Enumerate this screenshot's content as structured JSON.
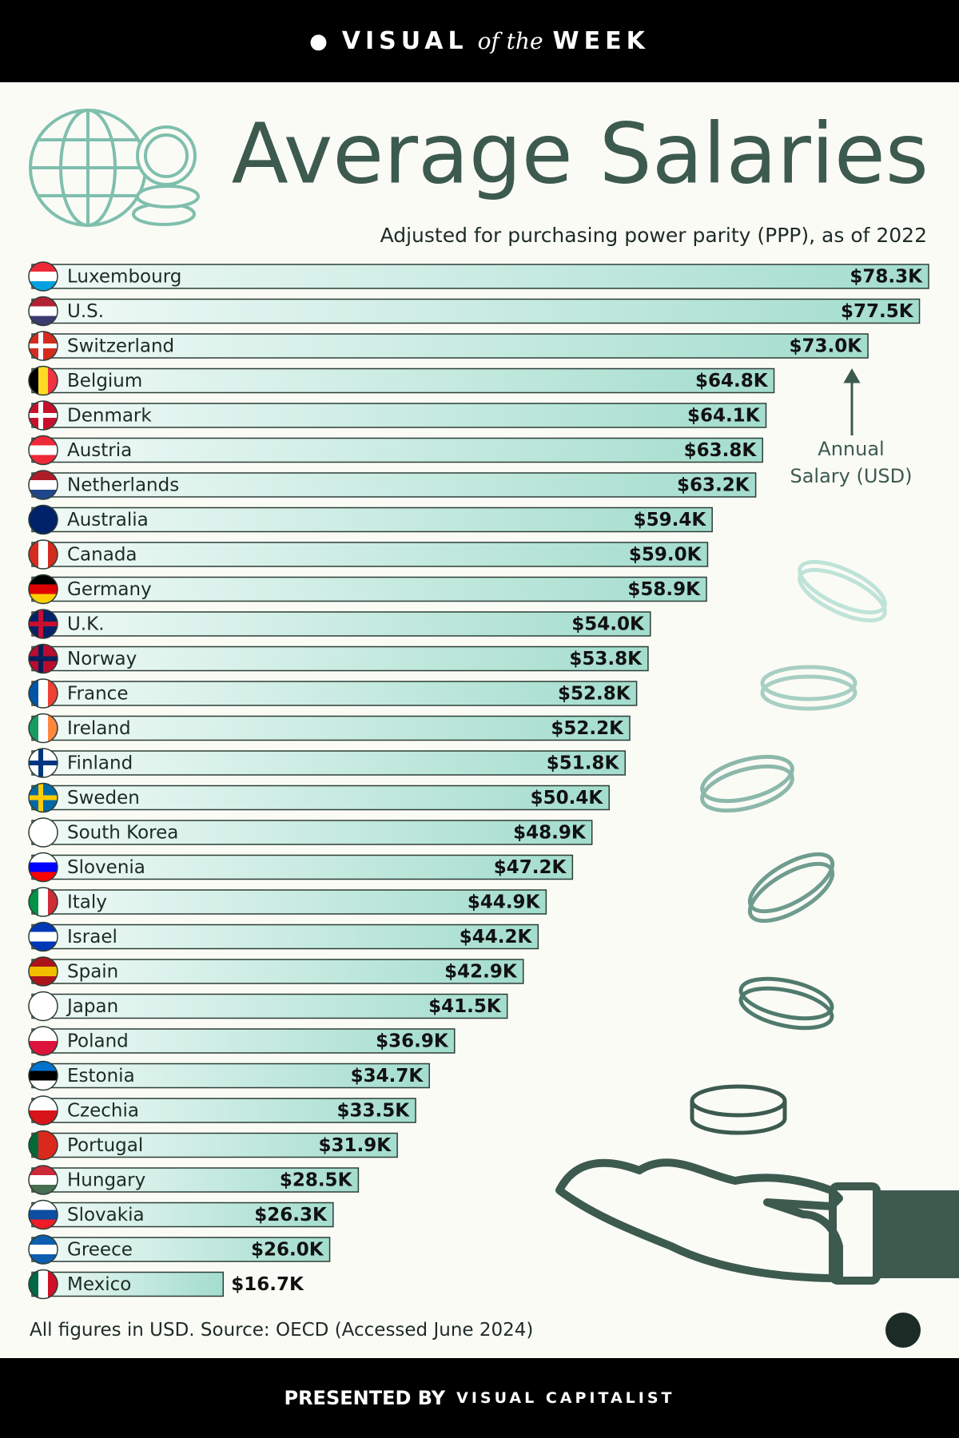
{
  "header": {
    "brand": "VISUAL",
    "connector": "of the",
    "series": "WEEK"
  },
  "chart_data": {
    "type": "bar",
    "orientation": "horizontal",
    "title": "Average Salaries",
    "subtitle": "Adjusted for purchasing power parity (PPP), as of 2022",
    "annotation": "Annual Salary (USD)",
    "categories": [
      "Luxembourg",
      "U.S.",
      "Switzerland",
      "Belgium",
      "Denmark",
      "Austria",
      "Netherlands",
      "Australia",
      "Canada",
      "Germany",
      "U.K.",
      "Norway",
      "France",
      "Ireland",
      "Finland",
      "Sweden",
      "South Korea",
      "Slovenia",
      "Italy",
      "Israel",
      "Spain",
      "Japan",
      "Poland",
      "Estonia",
      "Czechia",
      "Portugal",
      "Hungary",
      "Slovakia",
      "Greece",
      "Mexico"
    ],
    "values": [
      78.3,
      77.5,
      73.0,
      64.8,
      64.1,
      63.8,
      63.2,
      59.4,
      59.0,
      58.9,
      54.0,
      53.8,
      52.8,
      52.2,
      51.8,
      50.4,
      48.9,
      47.2,
      44.9,
      44.2,
      42.9,
      41.5,
      36.9,
      34.7,
      33.5,
      31.9,
      28.5,
      26.3,
      26.0,
      16.7
    ],
    "value_labels": [
      "$78.3K",
      "$77.5K",
      "$73.0K",
      "$64.8K",
      "$64.1K",
      "$63.8K",
      "$63.2K",
      "$59.4K",
      "$59.0K",
      "$58.9K",
      "$54.0K",
      "$53.8K",
      "$52.8K",
      "$52.2K",
      "$51.8K",
      "$50.4K",
      "$48.9K",
      "$47.2K",
      "$44.9K",
      "$44.2K",
      "$42.9K",
      "$41.5K",
      "$36.9K",
      "$34.7K",
      "$33.5K",
      "$31.9K",
      "$28.5K",
      "$26.3K",
      "$26.0K",
      "$16.7K"
    ],
    "color": "#a3ddcd"
  },
  "footer": {
    "note": "All figures in USD. Source: OECD (Accessed June 2024)",
    "presented_by": "PRESENTED BY",
    "publisher": "VISUAL CAPITALIST"
  }
}
